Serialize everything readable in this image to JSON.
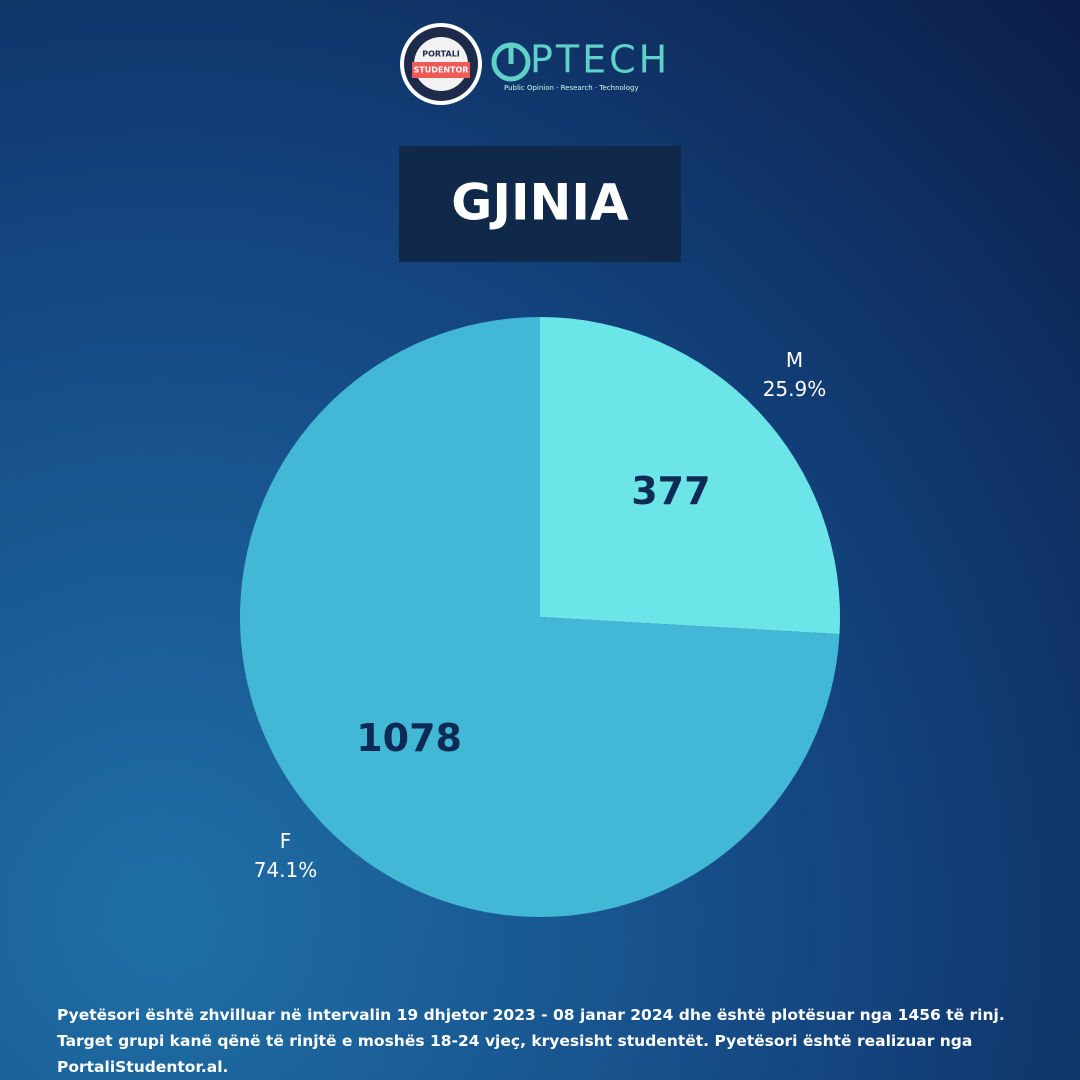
{
  "header": {
    "logo_top": "PORTALI",
    "logo_bottom": "STUDENTOR",
    "brand": "PTECH",
    "tagline": "Public Opinion · Research · Technology"
  },
  "chart_data": {
    "type": "pie",
    "title": "GJINIA",
    "categories": [
      "M",
      "F"
    ],
    "values": [
      377,
      1078
    ],
    "percent_labels": [
      "25.9%",
      "74.1%"
    ],
    "colors": [
      "#6ce5e8",
      "#42b8d6"
    ]
  },
  "footer": "Pyetësori është zhvilluar në intervalin 19 dhjetor 2023 - 08 janar 2024 dhe është plotësuar nga 1456 të rinj. Target grupi kanë qënë të rinjtë e moshës 18-24 vjeç, kryesisht studentët. Pyetësori është realizuar nga PortaliStudentor.al."
}
